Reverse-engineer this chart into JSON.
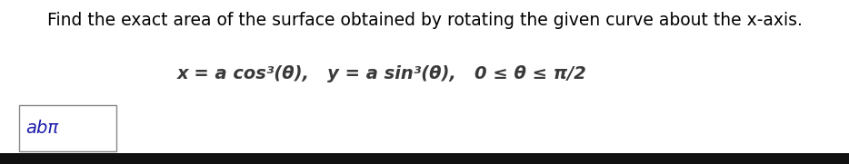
{
  "title": "Find the exact area of the surface obtained by rotating the given curve about the x-axis.",
  "equation": "x = a cos³(θ),   y = a sin³(θ),   0 ≤ θ ≤ π/2",
  "answer_box_text": "abπ",
  "bg_color": "#ffffff",
  "title_color": "#000000",
  "eq_color": "#3a3a3a",
  "answer_color": "#1a1aaa",
  "bottom_bar_color": "#111111",
  "title_fontsize": 13.5,
  "eq_fontsize": 14,
  "answer_fontsize": 14,
  "fig_width": 9.34,
  "fig_height": 1.81,
  "dpi": 100
}
